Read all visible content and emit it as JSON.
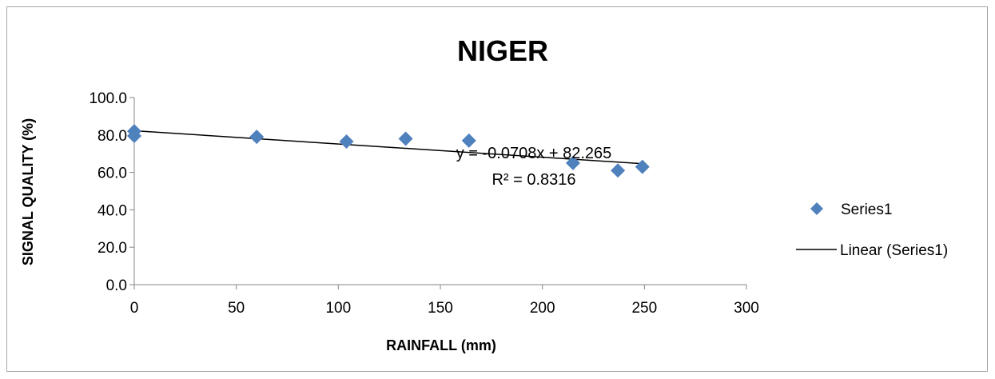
{
  "chart_data": {
    "type": "scatter",
    "title": "NIGER",
    "xlabel": "RAINFALL (mm)",
    "ylabel": "SIGNAL QUALITY (%)",
    "xlim": [
      0,
      300
    ],
    "ylim": [
      0,
      100
    ],
    "x_ticks": [
      "0",
      "50",
      "100",
      "150",
      "200",
      "250",
      "300"
    ],
    "y_ticks": [
      "0.0",
      "20.0",
      "40.0",
      "60.0",
      "80.0",
      "100.0"
    ],
    "grid": false,
    "legend_position": "right",
    "series": [
      {
        "name": "Series1",
        "color": "#4f81bd",
        "marker": "diamond",
        "points": [
          {
            "x": 0,
            "y": 82.0
          },
          {
            "x": 0,
            "y": 79.5
          },
          {
            "x": 60,
            "y": 79.0
          },
          {
            "x": 104,
            "y": 76.5
          },
          {
            "x": 133,
            "y": 78.0
          },
          {
            "x": 164,
            "y": 77.0
          },
          {
            "x": 215,
            "y": 65.0
          },
          {
            "x": 237,
            "y": 61.0
          },
          {
            "x": 249,
            "y": 63.0
          }
        ]
      }
    ],
    "trendline": {
      "name": "Linear (Series1)",
      "color": "#000000",
      "slope": -0.0708,
      "intercept": 82.265,
      "x_range": [
        0,
        250
      ],
      "equation": "y = -0.0708x + 82.265",
      "r_squared": "R² = 0.8316"
    }
  }
}
